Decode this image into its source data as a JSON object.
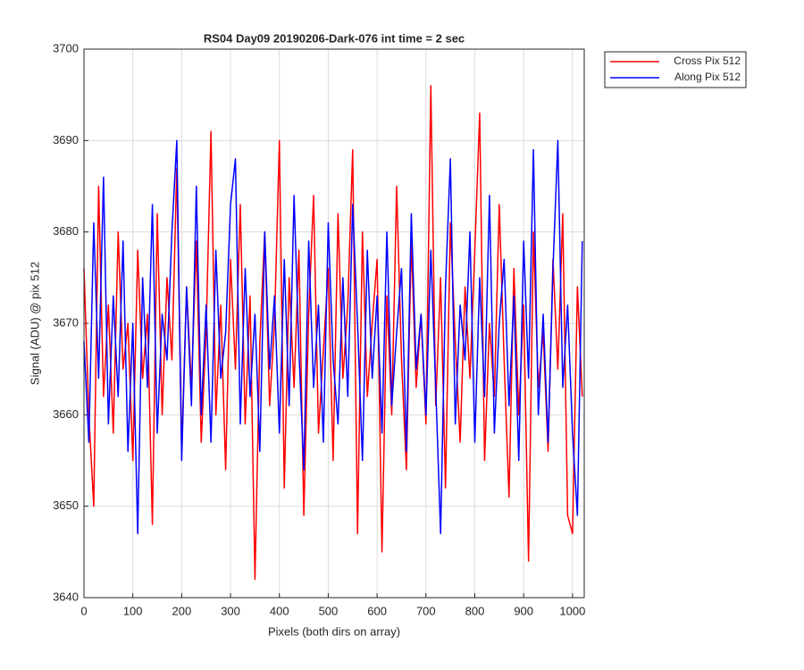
{
  "chart_data": {
    "type": "line",
    "title": "RS04 Day09 20190206-Dark-076 int time = 2 sec",
    "x_label": "Pixels (both dirs on array)",
    "y_label": "Signal (ADU) @ pix 512",
    "x": [
      0,
      10,
      20,
      30,
      40,
      50,
      60,
      70,
      80,
      90,
      100,
      110,
      120,
      130,
      140,
      150,
      160,
      170,
      180,
      190,
      200,
      210,
      220,
      230,
      240,
      250,
      260,
      270,
      280,
      290,
      300,
      310,
      320,
      330,
      340,
      350,
      360,
      370,
      380,
      390,
      400,
      410,
      420,
      430,
      440,
      450,
      460,
      470,
      480,
      490,
      500,
      510,
      520,
      530,
      540,
      550,
      560,
      570,
      580,
      590,
      600,
      610,
      620,
      630,
      640,
      650,
      660,
      670,
      680,
      690,
      700,
      710,
      720,
      730,
      740,
      750,
      760,
      770,
      780,
      790,
      800,
      810,
      820,
      830,
      840,
      850,
      860,
      870,
      880,
      890,
      900,
      910,
      920,
      930,
      940,
      950,
      960,
      970,
      980,
      990,
      1000,
      1010,
      1020
    ],
    "series": [
      {
        "name": "Cross Pix 512",
        "color": "#ff0000",
        "values": [
          3676,
          3660,
          3650,
          3685,
          3662,
          3672,
          3658,
          3680,
          3665,
          3670,
          3655,
          3678,
          3664,
          3671,
          3648,
          3682,
          3660,
          3675,
          3666,
          3687,
          3656,
          3674,
          3663,
          3679,
          3657,
          3669,
          3691,
          3660,
          3672,
          3654,
          3677,
          3665,
          3683,
          3659,
          3673,
          3642,
          3668,
          3680,
          3661,
          3670,
          3690,
          3652,
          3675,
          3663,
          3678,
          3649,
          3671,
          3684,
          3658,
          3667,
          3676,
          3655,
          3682,
          3664,
          3672,
          3689,
          3647,
          3680,
          3662,
          3670,
          3677,
          3645,
          3673,
          3660,
          3685,
          3666,
          3654,
          3679,
          3663,
          3671,
          3659,
          3696,
          3661,
          3675,
          3652,
          3681,
          3668,
          3657,
          3674,
          3664,
          3678,
          3693,
          3655,
          3670,
          3662,
          3683,
          3666,
          3651,
          3676,
          3660,
          3672,
          3644,
          3680,
          3663,
          3669,
          3656,
          3677,
          3665,
          3682,
          3649,
          3647,
          3674,
          3662
        ]
      },
      {
        "name": "Along Pix 512",
        "color": "#0000ff",
        "values": [
          3668,
          3657,
          3681,
          3664,
          3686,
          3659,
          3673,
          3662,
          3679,
          3656,
          3670,
          3647,
          3675,
          3663,
          3683,
          3658,
          3671,
          3666,
          3680,
          3690,
          3655,
          3674,
          3661,
          3685,
          3660,
          3672,
          3657,
          3678,
          3664,
          3669,
          3683,
          3688,
          3659,
          3676,
          3662,
          3671,
          3656,
          3680,
          3665,
          3673,
          3658,
          3677,
          3661,
          3684,
          3667,
          3654,
          3679,
          3663,
          3672,
          3657,
          3681,
          3666,
          3659,
          3675,
          3662,
          3683,
          3670,
          3655,
          3678,
          3664,
          3673,
          3658,
          3680,
          3661,
          3669,
          3676,
          3656,
          3682,
          3665,
          3671,
          3660,
          3678,
          3663,
          3647,
          3674,
          3688,
          3659,
          3672,
          3666,
          3680,
          3657,
          3675,
          3662,
          3684,
          3658,
          3670,
          3677,
          3661,
          3673,
          3655,
          3679,
          3664,
          3689,
          3660,
          3671,
          3657,
          3676,
          3690,
          3663,
          3672,
          3658,
          3649,
          3679
        ]
      }
    ],
    "xlim": [
      0,
      1024
    ],
    "xticks": [
      0,
      100,
      200,
      300,
      400,
      500,
      600,
      700,
      800,
      900,
      1000
    ],
    "ylim": [
      3640,
      3700
    ],
    "yticks": [
      3640,
      3650,
      3660,
      3670,
      3680,
      3690,
      3700
    ],
    "grid": true,
    "legend": "outside-top-right"
  }
}
